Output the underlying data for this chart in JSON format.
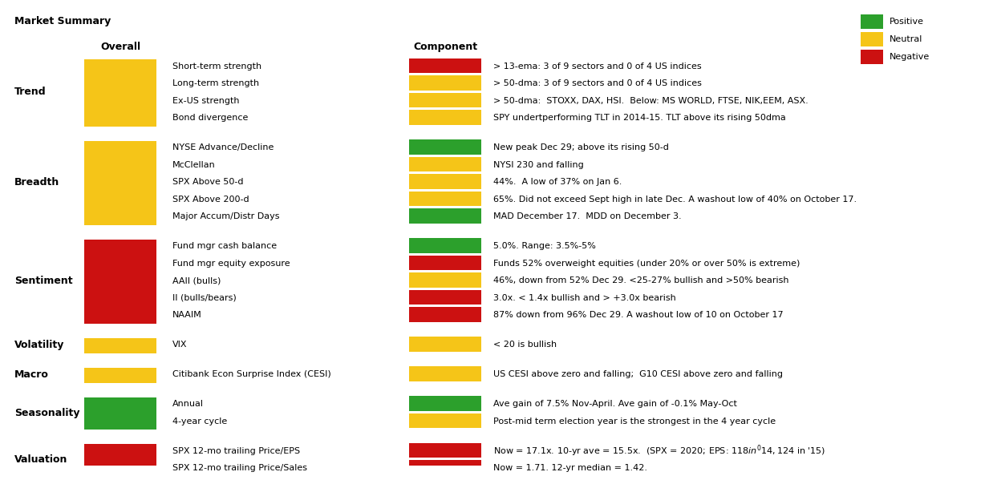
{
  "title": "Market Summary",
  "legend": {
    "positive_color": "#2ca02c",
    "neutral_color": "#f5c518",
    "negative_color": "#cc1111",
    "labels": [
      "Positive",
      "Neutral",
      "Negative"
    ]
  },
  "sections": [
    {
      "label": "Trend",
      "overall_color": "#f5c518",
      "sub_items": [
        {
          "name": "Short-term strength",
          "component_color": "#cc1111",
          "description": "> 13-ema: 3 of 9 sectors and 0 of 4 US indices"
        },
        {
          "name": "Long-term strength",
          "component_color": "#f5c518",
          "description": "> 50-dma: 3 of 9 sectors and 0 of 4 US indices"
        },
        {
          "name": "Ex-US strength",
          "component_color": "#f5c518",
          "description": "> 50-dma:  STOXX, DAX, HSI.  Below: MS WORLD, FTSE, NIK,EEM, ASX."
        },
        {
          "name": "Bond divergence",
          "component_color": "#f5c518",
          "description": "SPY undertperforming TLT in 2014-15. TLT above its rising 50dma"
        }
      ]
    },
    {
      "label": "Breadth",
      "overall_color": "#f5c518",
      "sub_items": [
        {
          "name": "NYSE Advance/Decline",
          "component_color": "#2ca02c",
          "description": "New peak Dec 29; above its rising 50-d"
        },
        {
          "name": "McClellan",
          "component_color": "#f5c518",
          "description": "NYSI 230 and falling"
        },
        {
          "name": "SPX Above 50-d",
          "component_color": "#f5c518",
          "description": "44%.  A low of 37% on Jan 6."
        },
        {
          "name": "SPX Above 200-d",
          "component_color": "#f5c518",
          "description": "65%. Did not exceed Sept high in late Dec. A washout low of 40% on October 17."
        },
        {
          "name": "Major Accum/Distr Days",
          "component_color": "#2ca02c",
          "description": "MAD December 17.  MDD on December 3."
        }
      ]
    },
    {
      "label": "Sentiment",
      "overall_color": "#cc1111",
      "sub_items": [
        {
          "name": "Fund mgr cash balance",
          "component_color": "#2ca02c",
          "description": "5.0%. Range: 3.5%-5%"
        },
        {
          "name": "Fund mgr equity exposure",
          "component_color": "#cc1111",
          "description": "Funds 52% overweight equities (under 20% or over 50% is extreme)"
        },
        {
          "name": "AAII (bulls)",
          "component_color": "#f5c518",
          "description": "46%, down from 52% Dec 29. <25-27% bullish and >50% bearish"
        },
        {
          "name": "II (bulls/bears)",
          "component_color": "#cc1111",
          "description": "3.0x. < 1.4x bullish and > +3.0x bearish"
        },
        {
          "name": "NAAIM",
          "component_color": "#cc1111",
          "description": "87% down from 96% Dec 29. A washout low of 10 on October 17"
        }
      ]
    },
    {
      "label": "Volatility",
      "overall_color": "#f5c518",
      "sub_items": [
        {
          "name": "VIX",
          "component_color": "#f5c518",
          "description": "< 20 is bullish"
        }
      ]
    },
    {
      "label": "Macro",
      "overall_color": "#f5c518",
      "sub_items": [
        {
          "name": "Citibank Econ Surprise Index (CESI)",
          "component_color": "#f5c518",
          "description": "US CESI above zero and falling;  G10 CESI above zero and falling"
        }
      ]
    },
    {
      "label": "Seasonality",
      "overall_color": "#2ca02c",
      "sub_items": [
        {
          "name": "Annual",
          "component_color": "#2ca02c",
          "description": "Ave gain of 7.5% Nov-April. Ave gain of -0.1% May-Oct"
        },
        {
          "name": "4-year cycle",
          "component_color": "#f5c518",
          "description": "Post-mid term election year is the strongest in the 4 year cycle"
        }
      ]
    },
    {
      "label": "Valuation",
      "overall_color": "#cc1111",
      "sub_items": [
        {
          "name": "SPX 12-mo trailing Price/EPS",
          "component_color": "#cc1111",
          "description": "Now = 17.1x. 10-yr ave = 15.5x.  (SPX = 2020; EPS: $118 in '14, $124 in '15)"
        },
        {
          "name": "SPX 12-mo trailing Price/Sales",
          "component_color": "#cc1111",
          "description": "Now = 1.71. 12-yr median = 1.42."
        }
      ]
    }
  ]
}
